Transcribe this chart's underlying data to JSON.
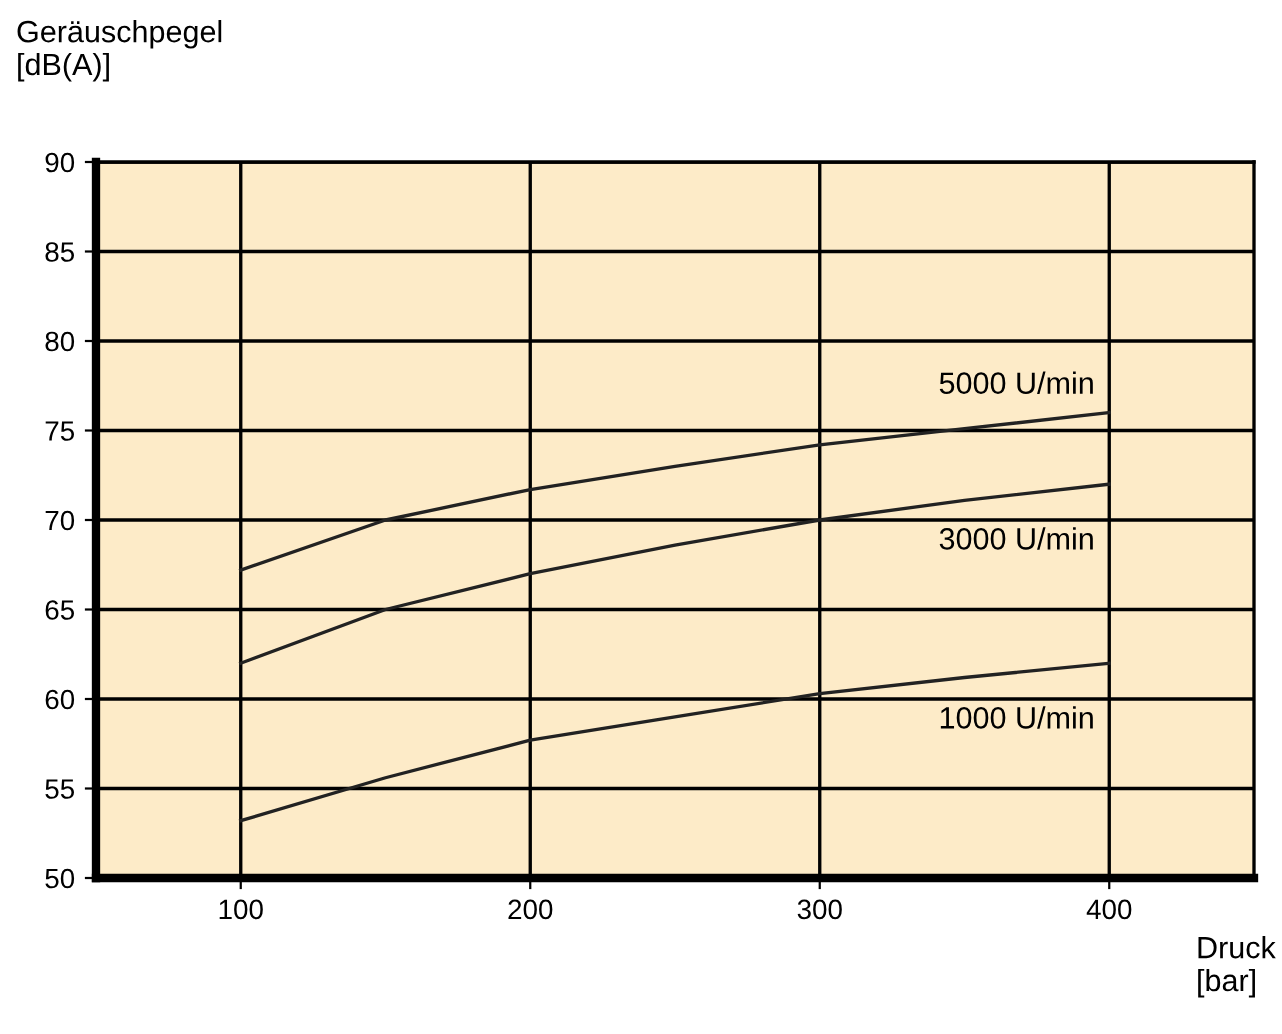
{
  "chart_data": {
    "type": "line",
    "xlabel": "Druck\n[bar]",
    "ylabel": "Geräuschpegel\n[dB(A)]",
    "x": [
      100,
      150,
      200,
      250,
      300,
      350,
      400
    ],
    "series": [
      {
        "name": "5000 U/min",
        "color": "#222222",
        "values": [
          67.2,
          70,
          71.7,
          73,
          74.2,
          75.1,
          76
        ]
      },
      {
        "name": "3000 U/min",
        "color": "#222222",
        "values": [
          62,
          65,
          67,
          68.6,
          70,
          71.1,
          72
        ]
      },
      {
        "name": "1000 U/min",
        "color": "#222222",
        "values": [
          53.2,
          55.6,
          57.7,
          59,
          60.3,
          61.2,
          62
        ]
      }
    ],
    "xlim": [
      50,
      450
    ],
    "ylim": [
      50,
      90
    ],
    "xticks": [
      100,
      200,
      300,
      400
    ],
    "yticks": [
      50,
      55,
      60,
      65,
      70,
      75,
      80,
      85,
      90
    ],
    "grid": true,
    "legend": false,
    "marker": "none",
    "line_style": "solid"
  }
}
